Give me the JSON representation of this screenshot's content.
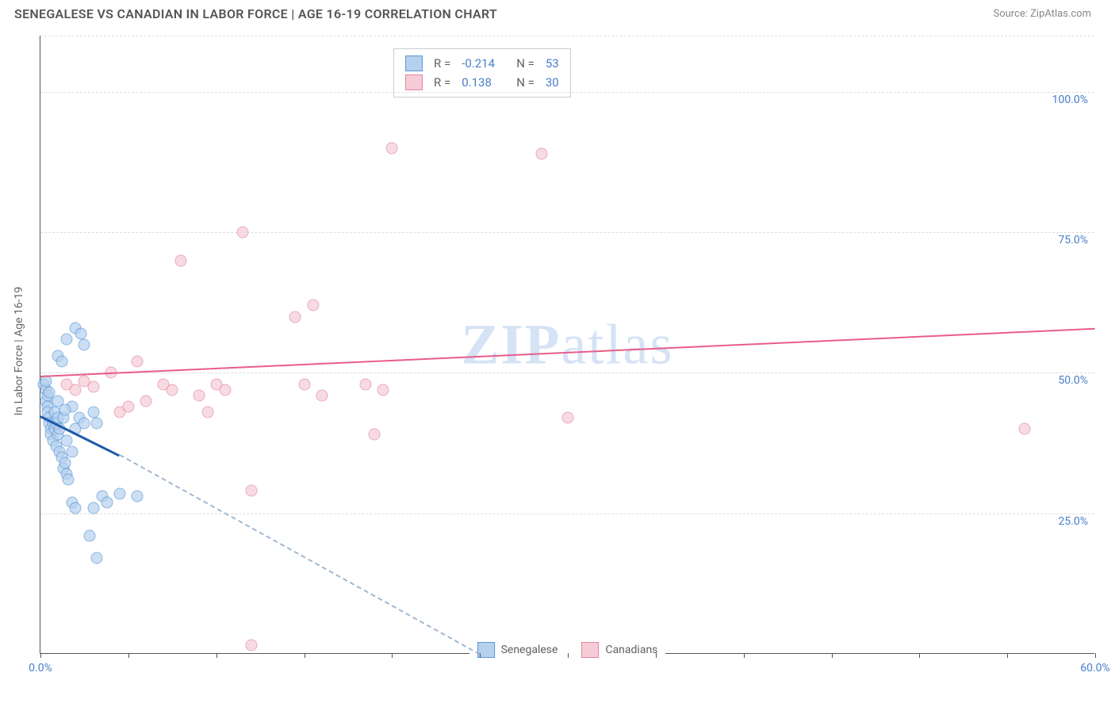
{
  "header": {
    "title": "SENEGALESE VS CANADIAN IN LABOR FORCE | AGE 16-19 CORRELATION CHART",
    "source": "Source: ZipAtlas.com"
  },
  "chart": {
    "type": "scatter",
    "y_label": "In Labor Force | Age 16-19",
    "xlim": [
      0,
      60
    ],
    "ylim": [
      0,
      110
    ],
    "x_tick_positions": [
      0,
      5,
      10,
      15,
      20,
      25,
      30,
      35,
      40,
      45,
      50,
      55,
      60
    ],
    "x_labels_shown": {
      "0": "0.0%",
      "60": "60.0%"
    },
    "y_grid_positions": [
      25,
      50,
      75,
      100,
      110
    ],
    "y_labels": {
      "25": "25.0%",
      "50": "50.0%",
      "75": "75.0%",
      "100": "100.0%"
    },
    "background_color": "#ffffff",
    "grid_color": "#dddddd",
    "axis_color": "#555555",
    "tick_label_color": "#4a7ec9",
    "marker_size": 15,
    "marker_stroke_width": 1.5,
    "watermark_text_bold": "ZIP",
    "watermark_text_rest": "atlas",
    "series": {
      "senegalese": {
        "label": "Senegalese",
        "color_fill": "#b6d1ee",
        "color_stroke": "#5c97d6",
        "fill_opacity": 0.7,
        "trend": {
          "x1": 0,
          "y1": 42.5,
          "x2": 4.5,
          "y2": 35.5,
          "color": "#1e5aa8",
          "width": 3
        },
        "trend_dashed": {
          "x1": 4.5,
          "y1": 35.5,
          "x2": 25,
          "y2": 0,
          "color": "#a0b8d0"
        },
        "R": "-0.214",
        "N": "53",
        "points": [
          {
            "x": 0.2,
            "y": 48
          },
          {
            "x": 0.3,
            "y": 47
          },
          {
            "x": 0.3,
            "y": 45
          },
          {
            "x": 0.4,
            "y": 46
          },
          {
            "x": 0.4,
            "y": 44
          },
          {
            "x": 0.4,
            "y": 43
          },
          {
            "x": 0.5,
            "y": 42
          },
          {
            "x": 0.5,
            "y": 41
          },
          {
            "x": 0.6,
            "y": 40
          },
          {
            "x": 0.6,
            "y": 39
          },
          {
            "x": 0.7,
            "y": 41
          },
          {
            "x": 0.7,
            "y": 38
          },
          {
            "x": 0.8,
            "y": 43
          },
          {
            "x": 0.8,
            "y": 40
          },
          {
            "x": 0.9,
            "y": 41
          },
          {
            "x": 0.9,
            "y": 37
          },
          {
            "x": 1.0,
            "y": 42
          },
          {
            "x": 1.0,
            "y": 39
          },
          {
            "x": 1.1,
            "y": 40
          },
          {
            "x": 1.1,
            "y": 36
          },
          {
            "x": 1.2,
            "y": 35
          },
          {
            "x": 1.3,
            "y": 42
          },
          {
            "x": 1.3,
            "y": 33
          },
          {
            "x": 1.4,
            "y": 34
          },
          {
            "x": 1.5,
            "y": 38
          },
          {
            "x": 1.5,
            "y": 32
          },
          {
            "x": 1.6,
            "y": 31
          },
          {
            "x": 1.8,
            "y": 36
          },
          {
            "x": 1.8,
            "y": 44
          },
          {
            "x": 2.0,
            "y": 40
          },
          {
            "x": 2.2,
            "y": 42
          },
          {
            "x": 2.5,
            "y": 41
          },
          {
            "x": 3.0,
            "y": 43
          },
          {
            "x": 3.2,
            "y": 41
          },
          {
            "x": 1.0,
            "y": 53
          },
          {
            "x": 1.2,
            "y": 52
          },
          {
            "x": 1.5,
            "y": 56
          },
          {
            "x": 2.0,
            "y": 58
          },
          {
            "x": 2.3,
            "y": 57
          },
          {
            "x": 2.5,
            "y": 55
          },
          {
            "x": 1.8,
            "y": 27
          },
          {
            "x": 2.0,
            "y": 26
          },
          {
            "x": 2.8,
            "y": 21
          },
          {
            "x": 3.0,
            "y": 26
          },
          {
            "x": 3.2,
            "y": 17
          },
          {
            "x": 3.5,
            "y": 28
          },
          {
            "x": 3.8,
            "y": 27
          },
          {
            "x": 4.5,
            "y": 28.5
          },
          {
            "x": 5.5,
            "y": 28
          },
          {
            "x": 0.3,
            "y": 48.5
          },
          {
            "x": 0.5,
            "y": 46.5
          },
          {
            "x": 1.0,
            "y": 45
          },
          {
            "x": 1.4,
            "y": 43.5
          }
        ]
      },
      "canadians": {
        "label": "Canadians",
        "color_fill": "#f6cdd7",
        "color_stroke": "#e085a0",
        "fill_opacity": 0.7,
        "trend": {
          "x1": 0,
          "y1": 49.5,
          "x2": 60,
          "y2": 58,
          "color": "#e85d8a",
          "width": 2
        },
        "R": "0.138",
        "N": "30",
        "points": [
          {
            "x": 1.5,
            "y": 48
          },
          {
            "x": 2.0,
            "y": 47
          },
          {
            "x": 2.5,
            "y": 48.5
          },
          {
            "x": 3.0,
            "y": 47.5
          },
          {
            "x": 4.0,
            "y": 50
          },
          {
            "x": 4.5,
            "y": 43
          },
          {
            "x": 5.0,
            "y": 44
          },
          {
            "x": 5.5,
            "y": 52
          },
          {
            "x": 6.0,
            "y": 45
          },
          {
            "x": 7.0,
            "y": 48
          },
          {
            "x": 7.5,
            "y": 47
          },
          {
            "x": 8.0,
            "y": 70
          },
          {
            "x": 9.0,
            "y": 46
          },
          {
            "x": 9.5,
            "y": 43
          },
          {
            "x": 10.0,
            "y": 48
          },
          {
            "x": 10.5,
            "y": 47
          },
          {
            "x": 11.5,
            "y": 75
          },
          {
            "x": 12.0,
            "y": 29
          },
          {
            "x": 12.0,
            "y": 1.5
          },
          {
            "x": 14.5,
            "y": 60
          },
          {
            "x": 15.0,
            "y": 48
          },
          {
            "x": 15.5,
            "y": 62
          },
          {
            "x": 16.0,
            "y": 46
          },
          {
            "x": 18.5,
            "y": 48
          },
          {
            "x": 19.0,
            "y": 39
          },
          {
            "x": 19.5,
            "y": 47
          },
          {
            "x": 20.0,
            "y": 90
          },
          {
            "x": 28.5,
            "y": 89
          },
          {
            "x": 30.0,
            "y": 42
          },
          {
            "x": 56.0,
            "y": 40
          }
        ]
      }
    }
  },
  "stats_legend": {
    "rows": [
      {
        "swatch_fill": "#b6d1ee",
        "swatch_stroke": "#5c97d6",
        "R_label": "R =",
        "R_val": "-0.214",
        "N_label": "N =",
        "N_val": "53"
      },
      {
        "swatch_fill": "#f6cdd7",
        "swatch_stroke": "#e085a0",
        "R_label": "R =",
        "R_val": "0.138",
        "N_label": "N =",
        "N_val": "30"
      }
    ]
  },
  "bottom_legend": {
    "items": [
      {
        "swatch_fill": "#b6d1ee",
        "swatch_stroke": "#5c97d6",
        "label": "Senegalese"
      },
      {
        "swatch_fill": "#f6cdd7",
        "swatch_stroke": "#e085a0",
        "label": "Canadians"
      }
    ]
  }
}
